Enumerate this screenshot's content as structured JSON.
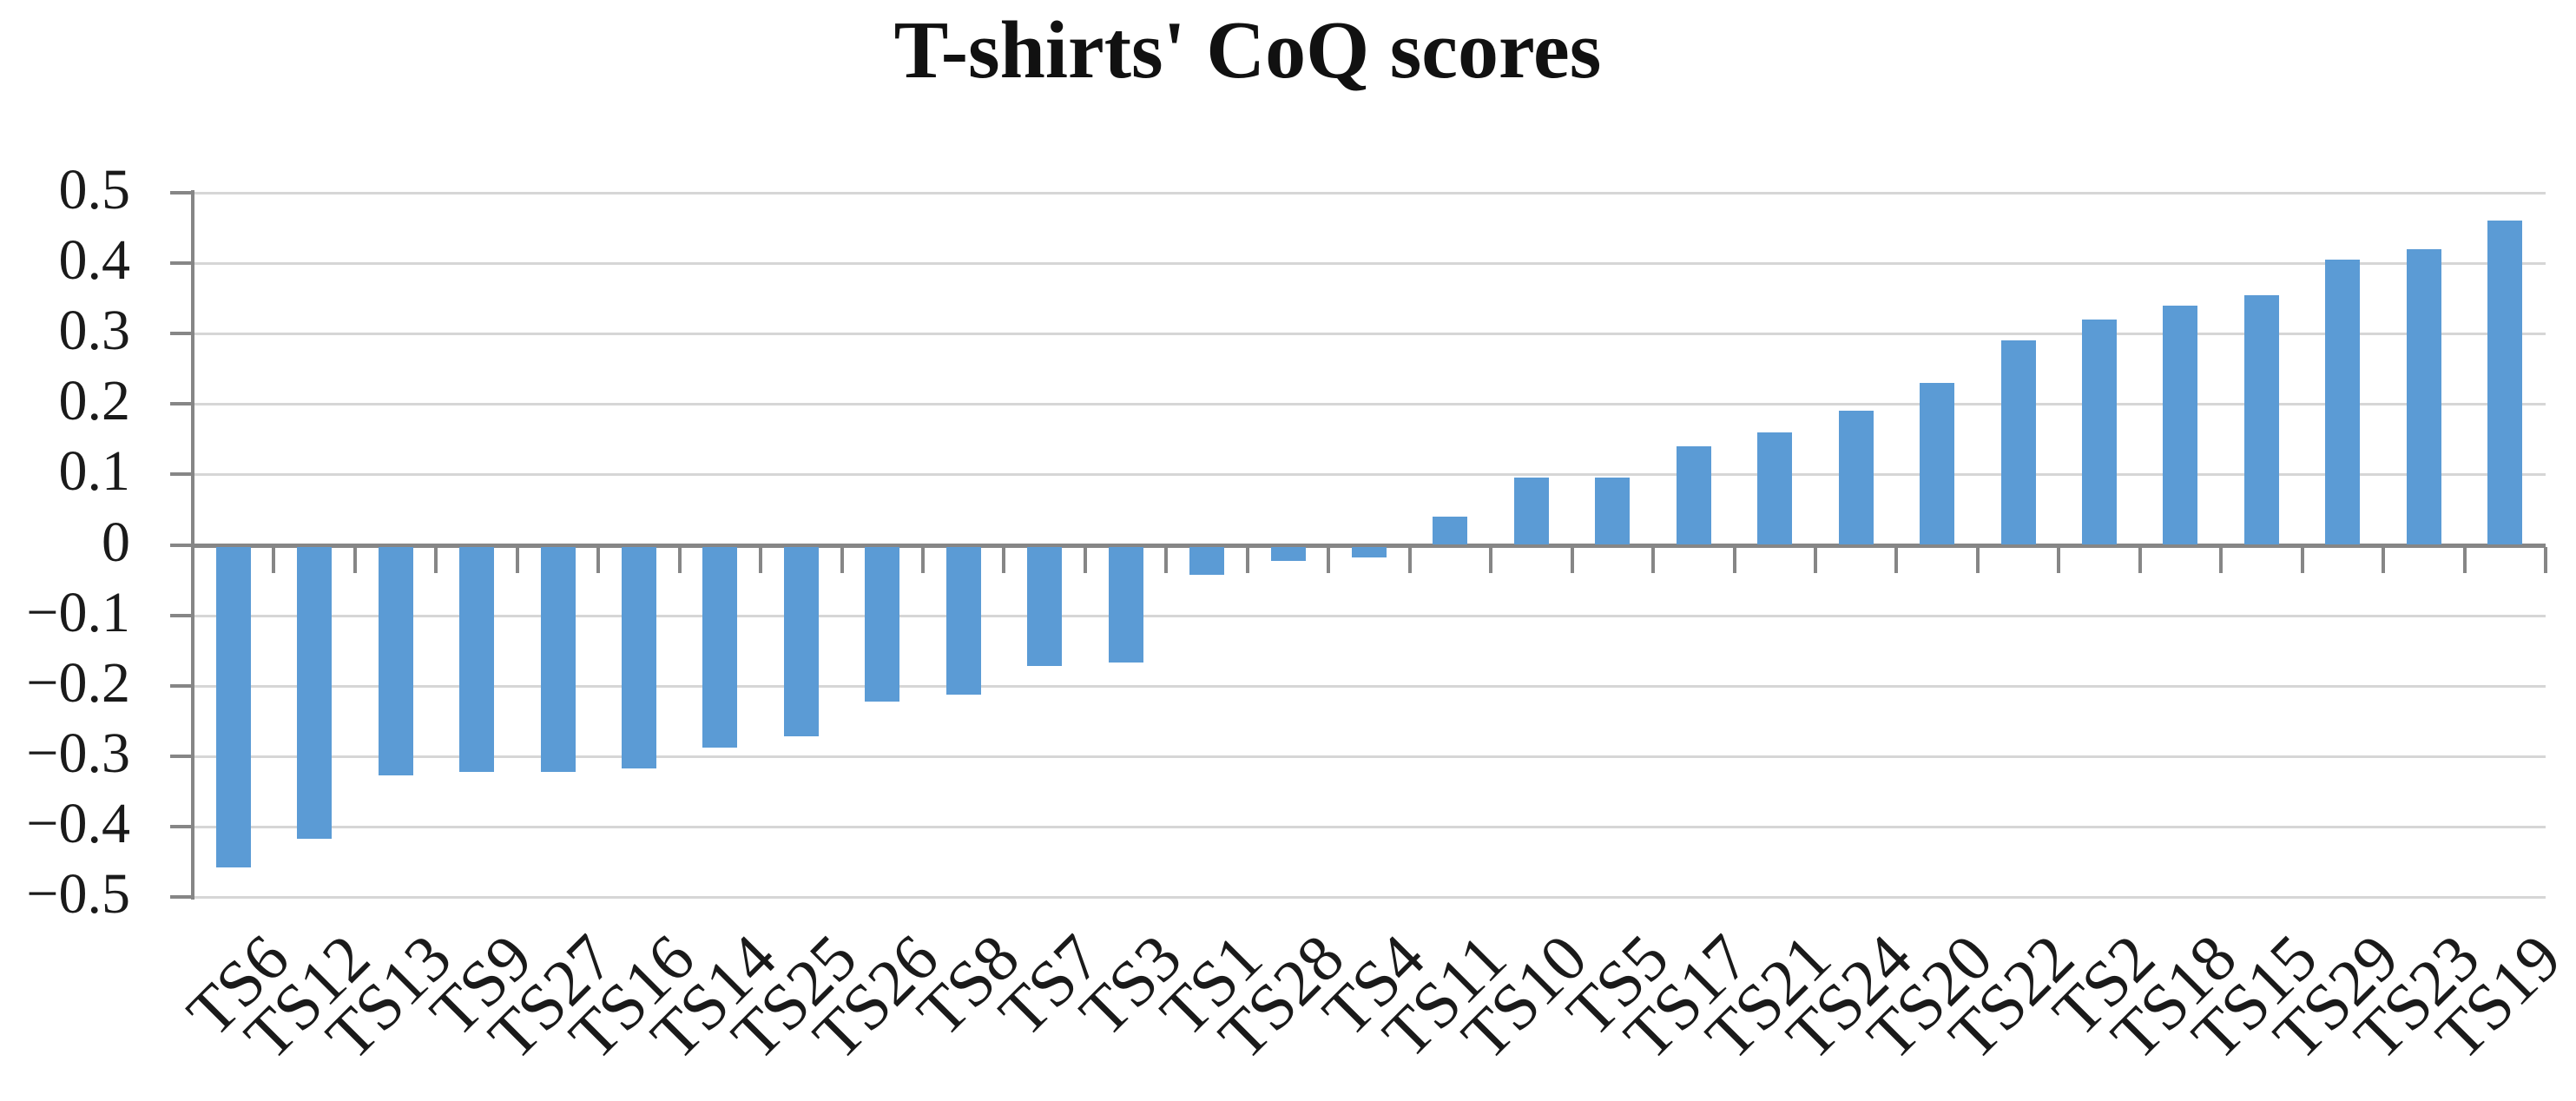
{
  "chart_data": {
    "type": "bar",
    "title": "T-shirts' CoQ scores",
    "xlabel": "",
    "ylabel": "",
    "legend": "none",
    "grid": true,
    "x_label_rotation": -45,
    "ylim": [
      -0.5,
      0.5
    ],
    "ytick_step": 0.1,
    "bar_color": "#5B9BD5",
    "axis_color": "#868686",
    "gridline_color": "#D6D6D6",
    "text_color": "#1a1a1a",
    "categories": [
      "TS6",
      "TS12",
      "TS13",
      "TS9",
      "TS27",
      "TS16",
      "TS14",
      "TS25",
      "TS26",
      "TS8",
      "TS7",
      "TS3",
      "TS1",
      "TS28",
      "TS4",
      "TS11",
      "TS10",
      "TS5",
      "TS17",
      "TS21",
      "TS24",
      "TS20",
      "TS22",
      "TS2",
      "TS18",
      "TS15",
      "TS29",
      "TS23",
      "TS19"
    ],
    "values": [
      -0.455,
      -0.415,
      -0.325,
      -0.32,
      -0.32,
      -0.315,
      -0.285,
      -0.27,
      -0.22,
      -0.21,
      -0.17,
      -0.165,
      -0.04,
      -0.02,
      -0.015,
      0.04,
      0.095,
      0.095,
      0.14,
      0.16,
      0.19,
      0.23,
      0.29,
      0.32,
      0.34,
      0.355,
      0.405,
      0.42,
      0.46
    ],
    "yticks": [
      {
        "value": 0.5,
        "label": "0.5"
      },
      {
        "value": 0.4,
        "label": "0.4"
      },
      {
        "value": 0.3,
        "label": "0.3"
      },
      {
        "value": 0.2,
        "label": "0.2"
      },
      {
        "value": 0.1,
        "label": "0.1"
      },
      {
        "value": 0,
        "label": "0"
      },
      {
        "value": -0.1,
        "label": "−0.1"
      },
      {
        "value": -0.2,
        "label": "−0.2"
      },
      {
        "value": -0.3,
        "label": "−0.3"
      },
      {
        "value": -0.4,
        "label": "−0.4"
      },
      {
        "value": -0.5,
        "label": "−0.5"
      }
    ]
  }
}
